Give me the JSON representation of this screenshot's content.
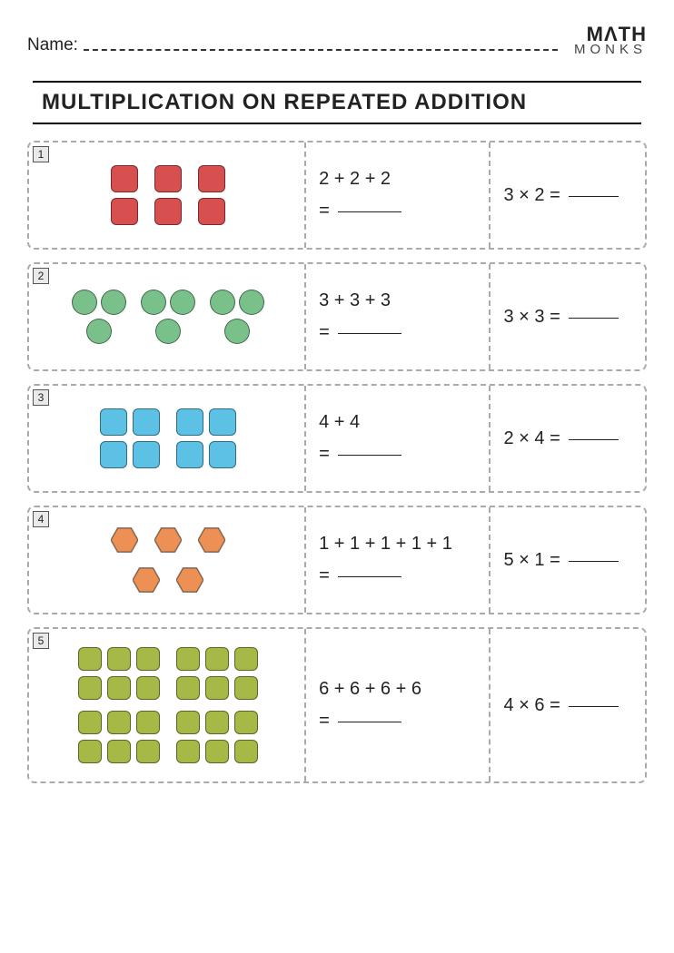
{
  "header": {
    "name_label": "Name:",
    "logo_top": "MΛTH",
    "logo_bottom": "MONKS"
  },
  "title": "MULTIPLICATION ON REPEATED ADDITION",
  "colors": {
    "red": "#d7504f",
    "green": "#79c08a",
    "blue": "#5cc1e5",
    "orange": "#ec9055",
    "olive": "#a6b846"
  },
  "problems": [
    {
      "num": "1",
      "shape": "square",
      "groups": 3,
      "per_group": 2,
      "group_cols": 1,
      "color": "red",
      "addition": "2 + 2 + 2",
      "multiplication": "3 × 2 ="
    },
    {
      "num": "2",
      "shape": "circle",
      "groups": 3,
      "per_group": 3,
      "group_cols": 2,
      "color": "green",
      "addition": "3 + 3 + 3",
      "multiplication": "3 × 3 ="
    },
    {
      "num": "3",
      "shape": "square",
      "groups": 2,
      "per_group": 4,
      "group_cols": 2,
      "color": "blue",
      "addition": "4 + 4",
      "multiplication": "2 × 4 ="
    },
    {
      "num": "4",
      "shape": "hexagon",
      "groups": 5,
      "per_group": 1,
      "group_cols": 1,
      "color": "orange",
      "layout_rows": [
        3,
        2
      ],
      "addition": "1 + 1 + 1 + 1 + 1",
      "multiplication": "5 × 1 ="
    },
    {
      "num": "5",
      "shape": "square",
      "groups": 4,
      "per_group": 6,
      "group_cols": 3,
      "color": "olive",
      "small": true,
      "addition": "6 + 6 + 6 + 6",
      "multiplication": "4 × 6 ="
    }
  ]
}
